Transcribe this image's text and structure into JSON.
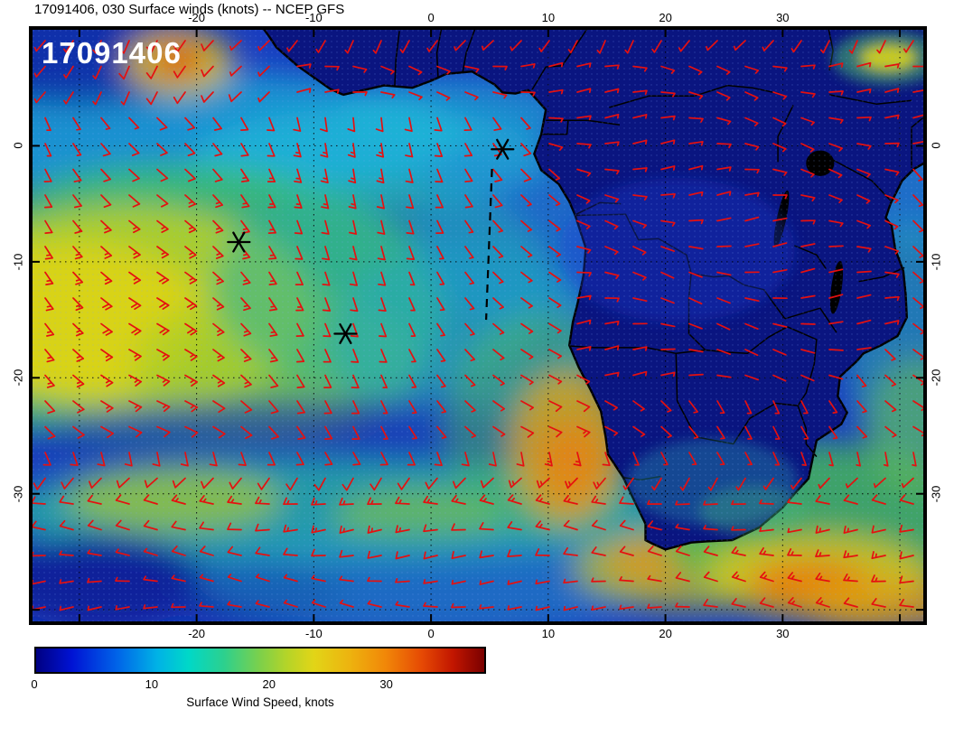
{
  "title": "17091406, 030 Surface winds (knots) -- NCEP GFS",
  "map_label": "17091406",
  "forecast_hour": "030",
  "model": "NCEP GFS",
  "axes": {
    "lon_tick_labels": [
      "-20",
      "-10",
      "0",
      "10",
      "20",
      "30"
    ],
    "lon_tick_values": [
      -20,
      -10,
      0,
      10,
      20,
      30
    ],
    "lat_tick_labels": [
      "0",
      "-10",
      "-20",
      "-30"
    ],
    "lat_tick_values": [
      0,
      -10,
      -20,
      -30
    ],
    "lon_range": [
      -34,
      42
    ],
    "lat_range": [
      -41,
      10
    ]
  },
  "colorbar": {
    "label": "Surface Wind Speed, knots",
    "tick_labels": [
      "0",
      "10",
      "20",
      "30"
    ],
    "tick_values": [
      0,
      10,
      20,
      30
    ],
    "min": 0,
    "max": 38.5,
    "stops": [
      [
        0,
        "#000082"
      ],
      [
        0.08,
        "#0013d4"
      ],
      [
        0.18,
        "#0063e8"
      ],
      [
        0.27,
        "#00b2e6"
      ],
      [
        0.34,
        "#00d8c8"
      ],
      [
        0.42,
        "#2dd08d"
      ],
      [
        0.5,
        "#7dd04a"
      ],
      [
        0.56,
        "#b5d428"
      ],
      [
        0.62,
        "#e2d517"
      ],
      [
        0.7,
        "#edb30f"
      ],
      [
        0.78,
        "#f18708"
      ],
      [
        0.86,
        "#e64a04"
      ],
      [
        0.93,
        "#c21600"
      ],
      [
        1,
        "#7a0000"
      ]
    ]
  },
  "wind_barbs": {
    "color": "#e51010"
  },
  "markers": [
    {
      "lon": 6.1,
      "lat": -0.3
    },
    {
      "lon": -16.4,
      "lat": -8.3
    },
    {
      "lon": -7.3,
      "lat": -16.2
    }
  ],
  "track_dashed": [
    [
      5.2,
      -2.0
    ],
    [
      4.7,
      -15.0
    ]
  ]
}
